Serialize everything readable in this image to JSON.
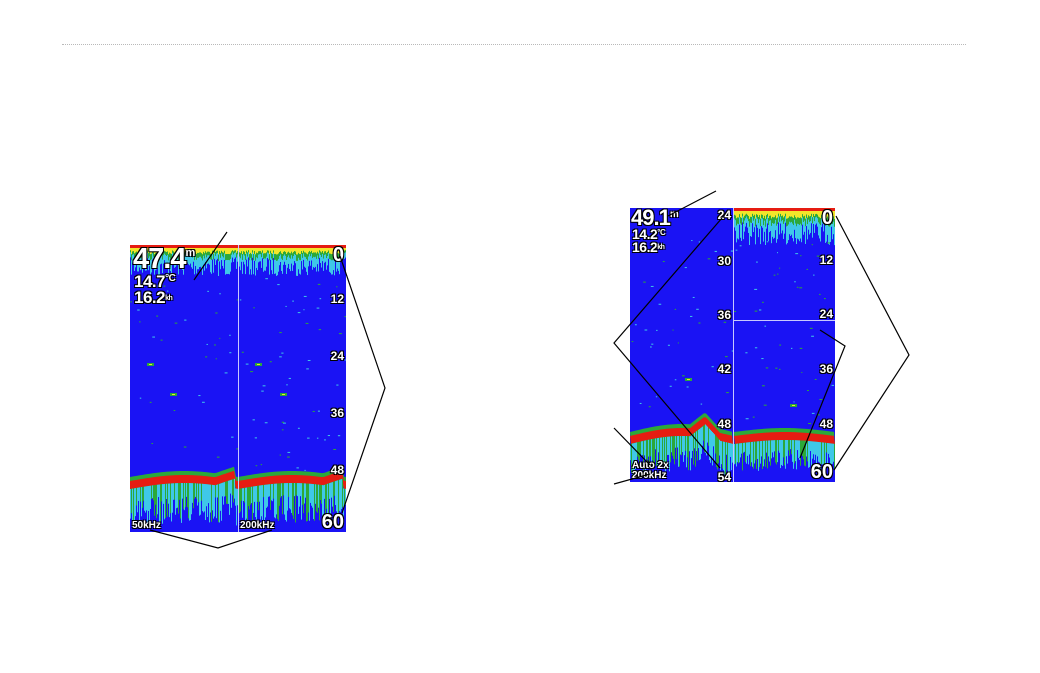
{
  "left_panel": {
    "depth_value": "47.4",
    "depth_unit": "m",
    "temp_value": "14.7",
    "temp_unit": "°C",
    "speed_value": "16.2",
    "speed_unit": "kh",
    "scale": [
      "0",
      "12",
      "24",
      "36",
      "48",
      "60"
    ],
    "freq_left": "50kHz",
    "freq_right": "200kHz"
  },
  "right_panel": {
    "depth_value": "49.1",
    "depth_unit": "m",
    "temp_value": "14.2",
    "temp_unit": "°C",
    "speed_value": "16.2",
    "speed_unit": "kh",
    "zoom_scale": [
      "24",
      "30",
      "36",
      "42",
      "48",
      "54"
    ],
    "full_scale": [
      "0",
      "12",
      "24",
      "36",
      "48",
      "60"
    ],
    "mode_label": "Auto 2x",
    "freq_label": "200kHz"
  },
  "colors": {
    "water": "#1a13f4",
    "bottom_red": "#e61c12",
    "clutter_cyan": "#3fc8e8",
    "clutter_green": "#2ca83a",
    "clutter_yellow": "#f2e62a"
  }
}
